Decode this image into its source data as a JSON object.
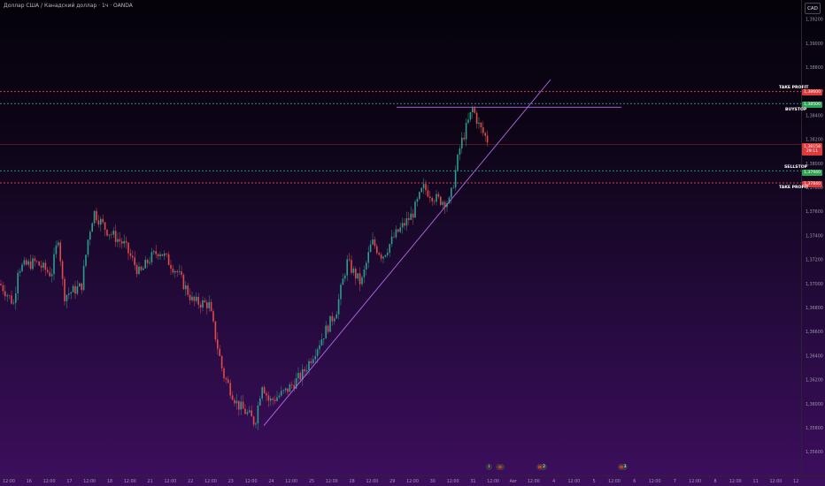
{
  "header": {
    "symbol_title": "Доллар США / Канадский доллар · 1ч · OANDA",
    "currency_button": "CAD"
  },
  "levels": {
    "take_profit_top": {
      "label": "TAKE PROFIT",
      "price": "1,38600",
      "color": "#e0393c"
    },
    "buystop": {
      "label": "BUYSTOP",
      "price": "1,38500",
      "color": "#2ea351"
    },
    "sellstop": {
      "label": "SELLSTOP",
      "price": "1,37940",
      "color": "#2ea351"
    },
    "take_profit_bottom": {
      "label": "TAKE PROFIT",
      "price": "1,37840",
      "color": "#e0393c"
    }
  },
  "last_price": {
    "price": "1,38158",
    "countdown": "29:11"
  },
  "events": [
    {
      "icon_name": "flag-event-icon",
      "text": ""
    },
    {
      "icon_name": "flag-event-icon",
      "text": "2"
    },
    {
      "icon_name": "flag-event-icon",
      "text": "3"
    }
  ],
  "colors": {
    "bull": "#2b9e8c",
    "bear": "#e04a4a",
    "trendline": "#b36ae8",
    "current_price_line": "#e0393c"
  },
  "chart_data": {
    "type": "candlestick",
    "title": "",
    "xlabel": "",
    "ylabel": "",
    "ylim": [
      1.355,
      1.392
    ],
    "y_ticks": [
      "1,39200",
      "1,39000",
      "1,38800",
      "1,38600",
      "1,38400",
      "1,38200",
      "1,38000",
      "1,37800",
      "1,37600",
      "1,37400",
      "1,37200",
      "1,37000",
      "1,36800",
      "1,36600",
      "1,36400",
      "1,36200",
      "1,36000",
      "1,35800",
      "1,35600"
    ],
    "x_ticks": [
      "12:00",
      "16",
      "12:00",
      "17",
      "12:00",
      "18",
      "12:00",
      "21",
      "12:00",
      "22",
      "12:00",
      "23",
      "12:00",
      "24",
      "12:00",
      "25",
      "12:00",
      "28",
      "12:00",
      "29",
      "12:00",
      "30",
      "12:00",
      "31",
      "12:00",
      "Авг",
      "12:00",
      "4",
      "12:00",
      "5",
      "12:00",
      "6",
      "12:00",
      "7",
      "12:00",
      "8",
      "12:00",
      "11",
      "12:00",
      "12"
    ],
    "price_path": [
      {
        "x": 0,
        "y": 1.37
      },
      {
        "x": 16,
        "y": 1.3683
      },
      {
        "x": 20,
        "y": 1.3713
      },
      {
        "x": 40,
        "y": 1.3718
      },
      {
        "x": 58,
        "y": 1.3708
      },
      {
        "x": 66,
        "y": 1.374
      },
      {
        "x": 72,
        "y": 1.369
      },
      {
        "x": 92,
        "y": 1.3698
      },
      {
        "x": 100,
        "y": 1.374
      },
      {
        "x": 106,
        "y": 1.376
      },
      {
        "x": 120,
        "y": 1.3745
      },
      {
        "x": 140,
        "y": 1.3733
      },
      {
        "x": 158,
        "y": 1.3708
      },
      {
        "x": 168,
        "y": 1.372
      },
      {
        "x": 180,
        "y": 1.3728
      },
      {
        "x": 200,
        "y": 1.371
      },
      {
        "x": 218,
        "y": 1.3685
      },
      {
        "x": 236,
        "y": 1.3683
      },
      {
        "x": 252,
        "y": 1.3625
      },
      {
        "x": 268,
        "y": 1.36
      },
      {
        "x": 282,
        "y": 1.359
      },
      {
        "x": 288,
        "y": 1.3584
      },
      {
        "x": 296,
        "y": 1.3618
      },
      {
        "x": 304,
        "y": 1.3602
      },
      {
        "x": 322,
        "y": 1.361
      },
      {
        "x": 342,
        "y": 1.3625
      },
      {
        "x": 360,
        "y": 1.365
      },
      {
        "x": 380,
        "y": 1.3678
      },
      {
        "x": 392,
        "y": 1.3718
      },
      {
        "x": 408,
        "y": 1.37
      },
      {
        "x": 420,
        "y": 1.3735
      },
      {
        "x": 432,
        "y": 1.3723
      },
      {
        "x": 446,
        "y": 1.374
      },
      {
        "x": 466,
        "y": 1.3758
      },
      {
        "x": 478,
        "y": 1.378
      },
      {
        "x": 494,
        "y": 1.377
      },
      {
        "x": 508,
        "y": 1.3768
      },
      {
        "x": 520,
        "y": 1.3815
      },
      {
        "x": 534,
        "y": 1.3846
      },
      {
        "x": 542,
        "y": 1.383
      },
      {
        "x": 552,
        "y": 1.3818
      }
    ],
    "trendline": [
      {
        "x": 298,
        "y": 1.3582
      },
      {
        "x": 622,
        "y": 1.387
      }
    ],
    "resistance_line": {
      "x_start": 448,
      "x_end": 702,
      "y": 1.3847
    },
    "levels": [
      1.386,
      1.385,
      1.3794,
      1.3784
    ],
    "current_price": 1.38158
  }
}
